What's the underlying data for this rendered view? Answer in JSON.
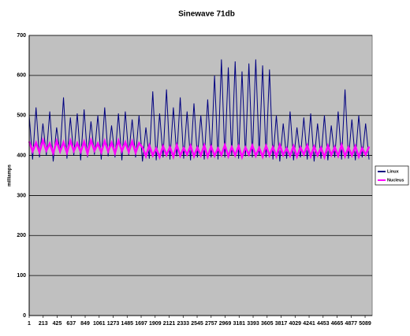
{
  "chart_data": {
    "type": "line",
    "title": "Sinewave 71db",
    "y_label": "milliamps",
    "x": [
      1,
      53,
      105,
      157,
      209,
      261,
      313,
      365,
      417,
      469,
      521,
      573,
      625,
      677,
      729,
      781,
      833,
      885,
      937,
      989,
      1041,
      1093,
      1145,
      1197,
      1249,
      1301,
      1353,
      1405,
      1457,
      1509,
      1561,
      1613,
      1665,
      1717,
      1769,
      1821,
      1873,
      1925,
      1977,
      2029,
      2081,
      2133,
      2185,
      2237,
      2289,
      2341,
      2393,
      2445,
      2497,
      2549,
      2601,
      2653,
      2705,
      2757,
      2809,
      2861,
      2913,
      2965,
      3017,
      3069,
      3121,
      3173,
      3225,
      3277,
      3329,
      3381,
      3433,
      3485,
      3537,
      3589,
      3641,
      3693,
      3745,
      3797,
      3849,
      3901,
      3953,
      4005,
      4057,
      4109,
      4161,
      4213,
      4265,
      4317,
      4369,
      4421,
      4473,
      4525,
      4577,
      4629,
      4681,
      4733,
      4785,
      4837,
      4889,
      4941,
      4993,
      5045,
      5097,
      5149
    ],
    "series": [
      {
        "name": "Linux",
        "color": "#000080",
        "values": [
          500,
          390,
          520,
          395,
          480,
          400,
          510,
          385,
          470,
          405,
          545,
          392,
          495,
          400,
          505,
          388,
          515,
          395,
          485,
          402,
          500,
          390,
          520,
          398,
          475,
          395,
          505,
          388,
          510,
          400,
          490,
          395,
          500,
          385,
          470,
          392,
          560,
          388,
          505,
          395,
          565,
          390,
          520,
          398,
          545,
          392,
          510,
          388,
          530,
          395,
          500,
          390,
          540,
          395,
          600,
          390,
          640,
          395,
          620,
          400,
          635,
          392,
          610,
          398,
          630,
          395,
          640,
          400,
          625,
          395,
          615,
          390,
          500,
          385,
          480,
          392,
          510,
          388,
          470,
          395,
          495,
          390,
          505,
          385,
          480,
          392,
          500,
          388,
          475,
          395,
          510,
          390,
          565,
          392,
          490,
          388,
          500,
          395,
          480,
          390
        ]
      },
      {
        "name": "Nucleus",
        "color": "#ff00ff",
        "values": [
          435,
          410,
          432,
          408,
          438,
          412,
          430,
          406,
          436,
          410,
          433,
          407,
          437,
          411,
          431,
          409,
          434,
          405,
          438,
          412,
          430,
          408,
          436,
          410,
          432,
          406,
          437,
          411,
          433,
          409,
          435,
          407,
          431,
          420,
          398,
          425,
          400,
          418,
          396,
          423,
          401,
          421,
          397,
          426,
          399,
          419,
          402,
          424,
          398,
          420,
          400,
          425,
          397,
          422,
          399,
          418,
          401,
          426,
          398,
          421,
          400,
          423,
          396,
          420,
          402,
          425,
          399,
          419,
          397,
          424,
          400,
          421,
          398,
          426,
          401,
          418,
          399,
          423,
          397,
          420,
          402,
          425,
          398,
          422,
          400,
          419,
          396,
          424,
          401,
          421,
          399,
          426,
          398,
          420,
          400,
          423,
          397,
          418,
          402,
          422
        ]
      }
    ],
    "xlim": [
      1,
      5196
    ],
    "xticks": [
      1,
      213,
      425,
      637,
      849,
      1061,
      1273,
      1485,
      1697,
      1909,
      2121,
      2333,
      2545,
      2757,
      2969,
      3181,
      3393,
      3605,
      3817,
      4029,
      4241,
      4453,
      4665,
      4877,
      5089
    ],
    "ylim": [
      0,
      700
    ],
    "yticks": [
      0,
      100,
      200,
      300,
      400,
      500,
      600,
      700
    ],
    "grid": true,
    "legend": "right"
  }
}
